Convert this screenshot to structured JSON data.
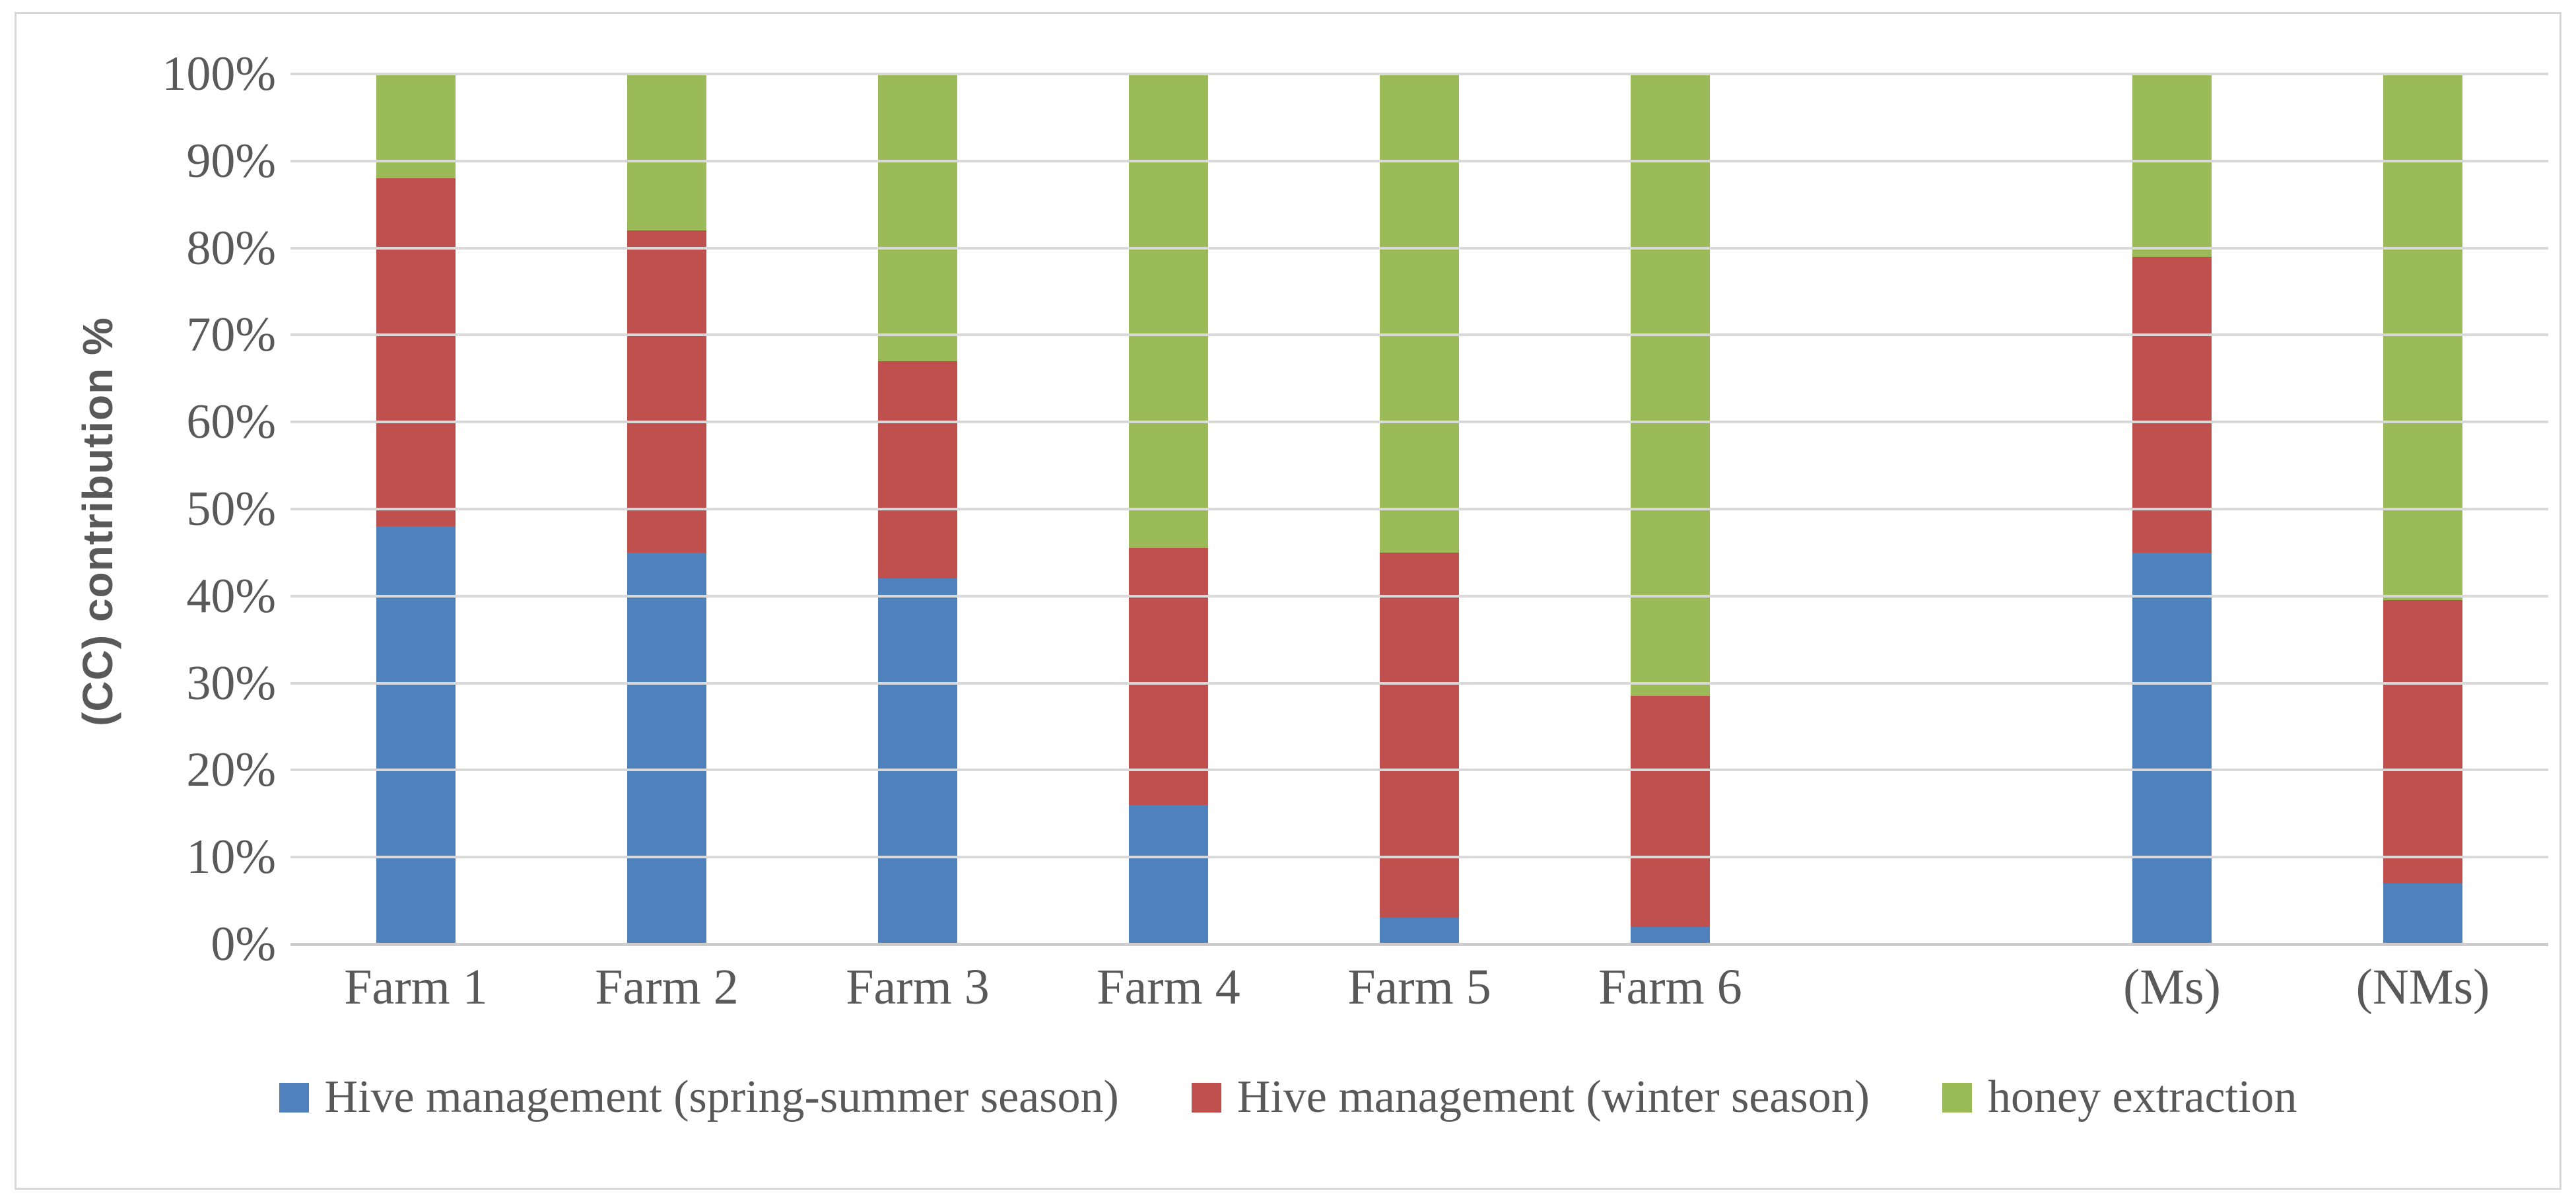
{
  "figure": {
    "background": "#ffffff",
    "frame_border_color": "#d8d8d8",
    "text_color": "#595959",
    "gridline_color": "#d9d9d9"
  },
  "chart_data": {
    "type": "bar",
    "stacked": true,
    "units": "percent",
    "title": "",
    "xlabel": "",
    "ylabel": "(CC) contribution %",
    "ylim": [
      0,
      100
    ],
    "grid": true,
    "legend_position": "bottom",
    "y_ticks": [
      "100%",
      "90%",
      "80%",
      "70%",
      "60%",
      "50%",
      "40%",
      "30%",
      "20%",
      "10%",
      "0%"
    ],
    "categories": [
      "Farm 1",
      "Farm 2",
      "Farm 3",
      "Farm 4",
      "Farm 5",
      "Farm 6",
      "",
      "(Ms)",
      "(NMs)"
    ],
    "series": [
      {
        "name": "Hive management (spring-summer season)",
        "color": "#4F81BD",
        "values": [
          48,
          45,
          42,
          16,
          3,
          2,
          null,
          45,
          7
        ]
      },
      {
        "name": "Hive management (winter season)",
        "color": "#C0504D",
        "values": [
          40,
          37,
          25,
          29.5,
          42,
          26.5,
          null,
          34,
          32.5
        ]
      },
      {
        "name": "honey extraction",
        "color": "#9BBB59",
        "values": [
          12,
          18,
          33,
          54.5,
          55,
          71.5,
          null,
          21,
          60.5
        ]
      }
    ]
  }
}
